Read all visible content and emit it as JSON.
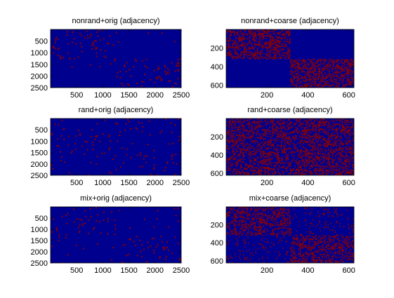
{
  "colors": {
    "background": "#00008f",
    "mark": "#8b0000",
    "axis": "#000000"
  },
  "chart_data": [
    {
      "type": "heatmap",
      "title": "nonrand+orig (adjacency)",
      "xticks": [
        500,
        1000,
        1500,
        2000,
        2500
      ],
      "yticks": [
        500,
        1000,
        1500,
        2000,
        2500
      ],
      "xlim": [
        1,
        2500
      ],
      "ylim": [
        1,
        2500
      ],
      "blocks": [
        {
          "x": [
            1,
            1250
          ],
          "y": [
            1,
            1250
          ],
          "density": 0.07
        },
        {
          "x": [
            1251,
            2500
          ],
          "y": [
            1251,
            2500
          ],
          "density": 0.07
        },
        {
          "x": [
            1,
            1250
          ],
          "y": [
            1251,
            2500
          ],
          "density": 0.005
        },
        {
          "x": [
            1251,
            2500
          ],
          "y": [
            1,
            1250
          ],
          "density": 0.005
        }
      ]
    },
    {
      "type": "heatmap",
      "title": "nonrand+coarse (adjacency)",
      "xticks": [
        200,
        400,
        600
      ],
      "yticks": [
        200,
        400,
        600
      ],
      "xlim": [
        1,
        625
      ],
      "ylim": [
        1,
        625
      ],
      "blocks": [
        {
          "x": [
            1,
            312
          ],
          "y": [
            1,
            312
          ],
          "density": 0.55
        },
        {
          "x": [
            313,
            625
          ],
          "y": [
            313,
            625
          ],
          "density": 0.55
        },
        {
          "x": [
            1,
            312
          ],
          "y": [
            313,
            625
          ],
          "density": 0.0
        },
        {
          "x": [
            313,
            625
          ],
          "y": [
            1,
            312
          ],
          "density": 0.0
        }
      ]
    },
    {
      "type": "heatmap",
      "title": "rand+orig (adjacency)",
      "xticks": [
        500,
        1000,
        1500,
        2000,
        2500
      ],
      "yticks": [
        500,
        1000,
        1500,
        2000,
        2500
      ],
      "xlim": [
        1,
        2500
      ],
      "ylim": [
        1,
        2500
      ],
      "blocks": [
        {
          "x": [
            1,
            2500
          ],
          "y": [
            1,
            2500
          ],
          "density": 0.035
        }
      ]
    },
    {
      "type": "heatmap",
      "title": "rand+coarse (adjacency)",
      "xticks": [
        200,
        400,
        600
      ],
      "yticks": [
        200,
        400,
        600
      ],
      "xlim": [
        1,
        625
      ],
      "ylim": [
        1,
        625
      ],
      "blocks": [
        {
          "x": [
            1,
            625
          ],
          "y": [
            1,
            625
          ],
          "density": 0.45
        }
      ]
    },
    {
      "type": "heatmap",
      "title": "mix+orig (adjacency)",
      "xticks": [
        500,
        1000,
        1500,
        2000,
        2500
      ],
      "yticks": [
        500,
        1000,
        1500,
        2000,
        2500
      ],
      "xlim": [
        1,
        2500
      ],
      "ylim": [
        1,
        2500
      ],
      "blocks": [
        {
          "x": [
            1,
            1250
          ],
          "y": [
            1,
            1250
          ],
          "density": 0.05
        },
        {
          "x": [
            1251,
            2500
          ],
          "y": [
            1251,
            2500
          ],
          "density": 0.05
        },
        {
          "x": [
            1,
            1250
          ],
          "y": [
            1251,
            2500
          ],
          "density": 0.012
        },
        {
          "x": [
            1251,
            2500
          ],
          "y": [
            1,
            1250
          ],
          "density": 0.012
        }
      ]
    },
    {
      "type": "heatmap",
      "title": "mix+coarse (adjacency)",
      "xticks": [
        200,
        400,
        600
      ],
      "yticks": [
        200,
        400,
        600
      ],
      "xlim": [
        1,
        625
      ],
      "ylim": [
        1,
        625
      ],
      "blocks": [
        {
          "x": [
            1,
            312
          ],
          "y": [
            1,
            312
          ],
          "density": 0.45
        },
        {
          "x": [
            313,
            625
          ],
          "y": [
            313,
            625
          ],
          "density": 0.45
        },
        {
          "x": [
            1,
            312
          ],
          "y": [
            313,
            625
          ],
          "density": 0.08
        },
        {
          "x": [
            313,
            625
          ],
          "y": [
            1,
            312
          ],
          "density": 0.08
        }
      ]
    }
  ]
}
